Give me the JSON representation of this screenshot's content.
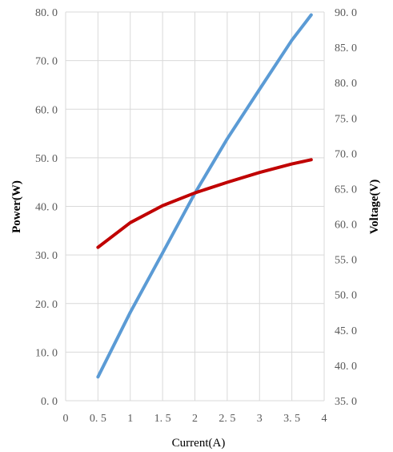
{
  "chart_data": {
    "type": "line",
    "title": "",
    "xlabel": "Current(A)",
    "ylabel_left": "Power(W)",
    "ylabel_right": "Voltage(V)",
    "xlim": [
      0,
      4
    ],
    "ylim_left": [
      0,
      80
    ],
    "ylim_right": [
      35,
      90
    ],
    "grid": true,
    "x_ticks": [
      "0",
      "0. 5",
      "1",
      "1. 5",
      "2",
      "2. 5",
      "3",
      "3. 5",
      "4"
    ],
    "y_left_ticks": [
      "0. 0",
      "10. 0",
      "20. 0",
      "30. 0",
      "40. 0",
      "50. 0",
      "60. 0",
      "70. 0",
      "80. 0"
    ],
    "y_right_ticks": [
      "35. 0",
      "40. 0",
      "45. 0",
      "50. 0",
      "55. 0",
      "60. 0",
      "65. 0",
      "70. 0",
      "75. 0",
      "80. 0",
      "85. 0",
      "90. 0"
    ],
    "series": [
      {
        "axis": "left",
        "color": "#5b9bd5",
        "x": [
          0.5,
          1.0,
          1.5,
          2.0,
          2.5,
          3.0,
          3.5,
          3.8
        ],
        "values": [
          4.9,
          18.2,
          30.4,
          42.7,
          53.9,
          64.1,
          74.2,
          79.4
        ]
      },
      {
        "axis": "right",
        "color": "#c00000",
        "x": [
          0.5,
          1.0,
          1.5,
          2.0,
          2.5,
          3.0,
          3.5,
          3.8
        ],
        "values": [
          56.7,
          60.2,
          62.6,
          64.4,
          65.9,
          67.3,
          68.5,
          69.1
        ]
      }
    ]
  }
}
